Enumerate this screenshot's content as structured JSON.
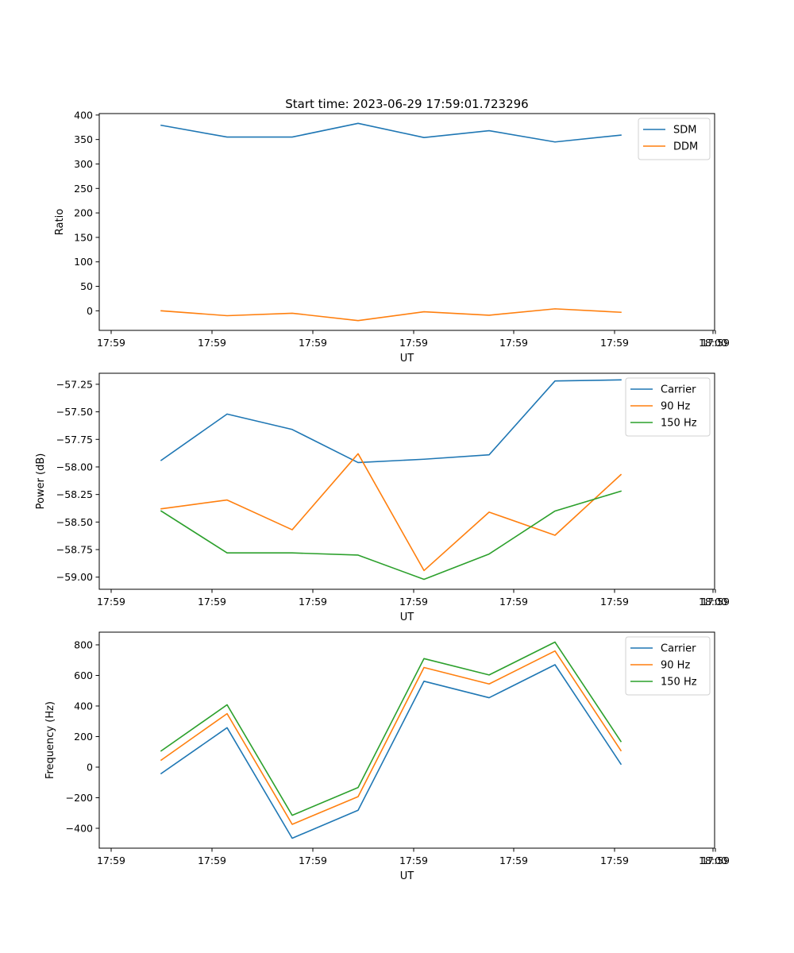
{
  "figure": {
    "title": "Start time: 2023-06-29 17:59:01.723296"
  },
  "colors": {
    "blue": "#1f77b4",
    "orange": "#ff7f0e",
    "green": "#2ca02c"
  },
  "chart_data": [
    {
      "type": "line",
      "xlabel": "UT",
      "ylabel": "Ratio",
      "x_tick_labels": [
        "17:59",
        "17:59",
        "17:59",
        "17:59",
        "17:59",
        "17:59",
        "17:59",
        "18:00"
      ],
      "ylim": [
        -40,
        403
      ],
      "y_ticks": [
        0,
        50,
        100,
        150,
        200,
        250,
        300,
        350,
        400
      ],
      "y_tick_labels": [
        "0",
        "50",
        "100",
        "150",
        "200",
        "250",
        "300",
        "350",
        "400"
      ],
      "legend_placement": "top-right",
      "grid": false,
      "series": [
        {
          "name": "SDM",
          "color": "#1f77b4",
          "values": [
            379,
            355,
            355,
            383,
            354,
            368,
            345,
            359
          ]
        },
        {
          "name": "DDM",
          "color": "#ff7f0e",
          "values": [
            0,
            -10,
            -5,
            -20,
            -2,
            -9,
            4,
            -3
          ]
        }
      ]
    },
    {
      "type": "line",
      "xlabel": "UT",
      "ylabel": "Power (dB)",
      "x_tick_labels": [
        "17:59",
        "17:59",
        "17:59",
        "17:59",
        "17:59",
        "17:59",
        "17:59",
        "18:00"
      ],
      "ylim": [
        -59.11,
        -57.15
      ],
      "y_ticks": [
        -59.0,
        -58.75,
        -58.5,
        -58.25,
        -58.0,
        -57.75,
        -57.5,
        -57.25
      ],
      "y_tick_labels": [
        "−59.00",
        "−58.75",
        "−58.50",
        "−58.25",
        "−58.00",
        "−57.75",
        "−57.50",
        "−57.25"
      ],
      "legend_placement": "top-right",
      "grid": false,
      "series": [
        {
          "name": "Carrier",
          "color": "#1f77b4",
          "values": [
            -57.94,
            -57.52,
            -57.66,
            -57.96,
            -57.93,
            -57.89,
            -57.22,
            -57.21
          ]
        },
        {
          "name": "90 Hz",
          "color": "#ff7f0e",
          "values": [
            -58.38,
            -58.3,
            -58.57,
            -57.88,
            -58.94,
            -58.41,
            -58.62,
            -58.07
          ]
        },
        {
          "name": "150 Hz",
          "color": "#2ca02c",
          "values": [
            -58.4,
            -58.78,
            -58.78,
            -58.8,
            -59.02,
            -58.79,
            -58.4,
            -58.22
          ]
        }
      ]
    },
    {
      "type": "line",
      "xlabel": "UT",
      "ylabel": "Frequency (Hz)",
      "x_tick_labels": [
        "17:59",
        "17:59",
        "17:59",
        "17:59",
        "17:59",
        "17:59",
        "17:59",
        "18:00"
      ],
      "ylim": [
        -530,
        883
      ],
      "y_ticks": [
        -400,
        -200,
        0,
        200,
        400,
        600,
        800
      ],
      "y_tick_labels": [
        "−400",
        "−200",
        "0",
        "200",
        "400",
        "600",
        "800"
      ],
      "legend_placement": "top-right",
      "grid": false,
      "series": [
        {
          "name": "Carrier",
          "color": "#1f77b4",
          "values": [
            -42,
            258,
            -465,
            -282,
            562,
            454,
            670,
            20
          ]
        },
        {
          "name": "90 Hz",
          "color": "#ff7f0e",
          "values": [
            46,
            350,
            -374,
            -193,
            652,
            544,
            760,
            108
          ]
        },
        {
          "name": "150 Hz",
          "color": "#2ca02c",
          "values": [
            106,
            408,
            -315,
            -133,
            710,
            603,
            818,
            168
          ]
        }
      ]
    }
  ]
}
